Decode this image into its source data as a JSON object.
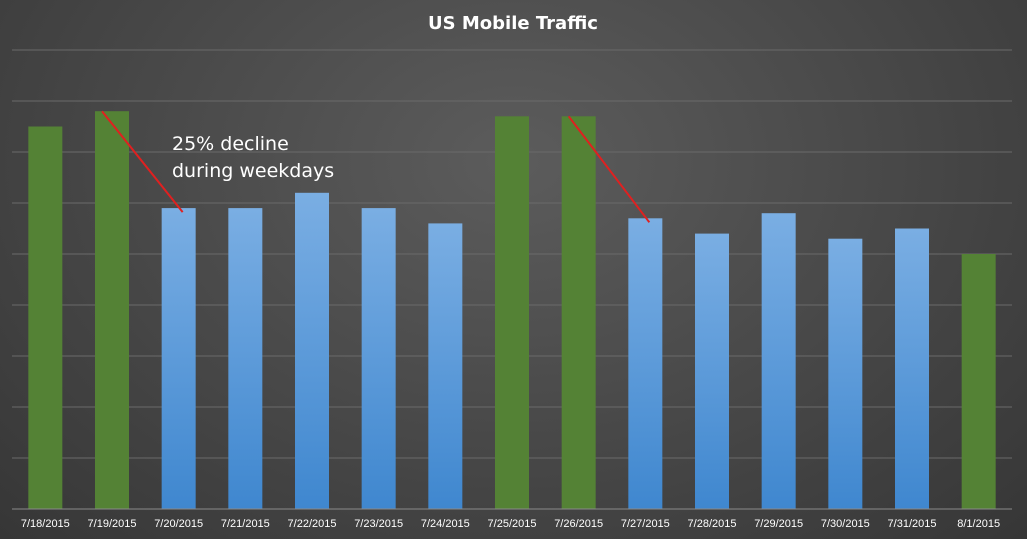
{
  "chart_data": {
    "type": "bar",
    "title": "US Mobile Traffic",
    "xlabel": "",
    "ylabel": "",
    "categories": [
      "7/18/2015",
      "7/19/2015",
      "7/20/2015",
      "7/21/2015",
      "7/22/2015",
      "7/23/2015",
      "7/24/2015",
      "7/25/2015",
      "7/26/2015",
      "7/27/2015",
      "7/28/2015",
      "7/29/2015",
      "7/30/2015",
      "7/31/2015",
      "8/1/2015"
    ],
    "values": [
      75,
      78,
      59,
      59,
      62,
      59,
      56,
      77,
      77,
      57,
      54,
      58,
      53,
      55,
      50
    ],
    "weekend": [
      true,
      true,
      false,
      false,
      false,
      false,
      false,
      true,
      true,
      false,
      false,
      false,
      false,
      false,
      true
    ],
    "ylim": [
      0,
      90
    ],
    "y_ticks_visible": false,
    "grid": true,
    "gridlines": 9,
    "colors": {
      "weekend": "#548235",
      "weekday_top": "#7aaee3",
      "weekday_bottom": "#3f87cf",
      "trend_line": "#e02020"
    },
    "annotations": [
      {
        "text": [
          "25% decline",
          "during weekdays"
        ]
      }
    ],
    "trend_lines": [
      {
        "from": 1,
        "to": 2
      },
      {
        "from": 8,
        "to": 9
      }
    ]
  }
}
